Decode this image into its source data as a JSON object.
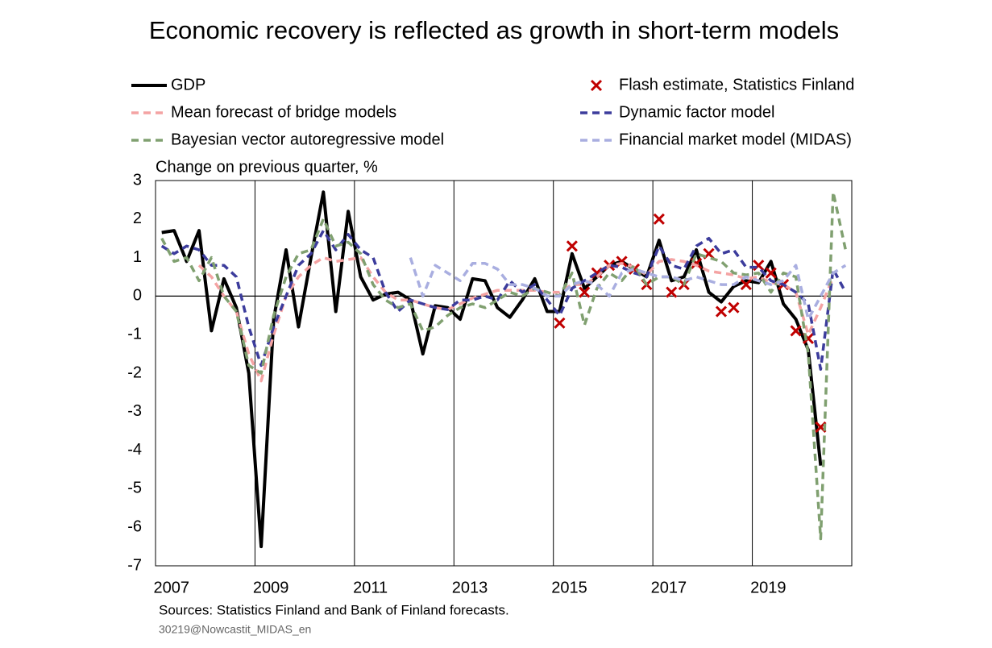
{
  "chart_data": {
    "type": "line",
    "title": "Economic recovery is reflected as growth in short-term models",
    "y_label": "Change on previous quarter, %",
    "source": "Sources: Statistics Finland and Bank of Finland forecasts.",
    "code": "30219@Nowcastit_MIDAS_en",
    "legend": "top",
    "grid": "x",
    "xlim": [
      2007,
      2021
    ],
    "xticks": [
      2007,
      2009,
      2011,
      2013,
      2015,
      2017,
      2019
    ],
    "ylim": [
      -7,
      3
    ],
    "yticks": [
      -7,
      -6,
      -5,
      -4,
      -3,
      -2,
      -1,
      0,
      1,
      2,
      3
    ],
    "x": [
      2007.125,
      2007.375,
      2007.625,
      2007.875,
      2008.125,
      2008.375,
      2008.625,
      2008.875,
      2009.125,
      2009.375,
      2009.625,
      2009.875,
      2010.125,
      2010.375,
      2010.625,
      2010.875,
      2011.125,
      2011.375,
      2011.625,
      2011.875,
      2012.125,
      2012.375,
      2012.625,
      2012.875,
      2013.125,
      2013.375,
      2013.625,
      2013.875,
      2014.125,
      2014.375,
      2014.625,
      2014.875,
      2015.125,
      2015.375,
      2015.625,
      2015.875,
      2016.125,
      2016.375,
      2016.625,
      2016.875,
      2017.125,
      2017.375,
      2017.625,
      2017.875,
      2018.125,
      2018.375,
      2018.625,
      2018.875,
      2019.125,
      2019.375,
      2019.625,
      2019.875,
      2020.125,
      2020.375,
      2020.625,
      2020.875
    ],
    "series": [
      {
        "name": "GDP",
        "color": "#000000",
        "style": "solid",
        "values": [
          1.65,
          1.7,
          0.9,
          1.7,
          -0.9,
          0.45,
          -0.3,
          -2.0,
          -6.5,
          -0.6,
          1.2,
          -0.8,
          1.0,
          2.7,
          -0.4,
          2.2,
          0.5,
          -0.1,
          0.05,
          0.1,
          -0.1,
          -1.5,
          -0.25,
          -0.3,
          -0.6,
          0.45,
          0.4,
          -0.3,
          -0.55,
          -0.1,
          0.45,
          -0.4,
          -0.4,
          1.1,
          0.2,
          0.5,
          0.8,
          0.9,
          0.7,
          0.5,
          1.45,
          0.4,
          0.5,
          1.2,
          0.1,
          -0.15,
          0.25,
          0.4,
          0.35,
          0.9,
          -0.2,
          -0.6,
          -1.4,
          -4.4,
          null,
          null
        ]
      },
      {
        "name": "Flash estimate, Statistics Finland",
        "color": "#c00000",
        "style": "marker-x",
        "values": [
          null,
          null,
          null,
          null,
          null,
          null,
          null,
          null,
          null,
          null,
          null,
          null,
          null,
          null,
          null,
          null,
          null,
          null,
          null,
          null,
          null,
          null,
          null,
          null,
          null,
          null,
          null,
          null,
          null,
          null,
          null,
          null,
          -0.7,
          1.3,
          0.1,
          0.6,
          0.8,
          0.9,
          0.7,
          0.3,
          2.0,
          0.1,
          0.3,
          0.85,
          1.1,
          -0.4,
          -0.3,
          0.3,
          0.8,
          0.6,
          0.3,
          -0.9,
          -1.1,
          -3.4,
          null,
          null
        ]
      },
      {
        "name": "Mean forecast of bridge models",
        "color": "#f4a3a3",
        "style": "dashed",
        "values": [
          null,
          null,
          null,
          0.8,
          0.5,
          0.0,
          -0.4,
          -1.5,
          -2.2,
          -1.0,
          0.0,
          0.5,
          0.8,
          1.0,
          0.9,
          0.95,
          1.0,
          0.5,
          0.1,
          -0.1,
          -0.1,
          -0.2,
          -0.3,
          -0.35,
          -0.2,
          -0.05,
          0.05,
          0.15,
          0.15,
          0.15,
          0.15,
          0.1,
          0.1,
          0.3,
          0.3,
          0.5,
          0.8,
          0.85,
          0.75,
          0.55,
          0.9,
          0.95,
          0.9,
          0.8,
          0.65,
          0.6,
          0.55,
          0.45,
          0.5,
          0.35,
          0.3,
          0.1,
          -1.0,
          -0.3,
          0.5,
          null
        ]
      },
      {
        "name": "Dynamic factor model",
        "color": "#3c3c9c",
        "style": "dashed",
        "values": [
          1.3,
          1.1,
          1.3,
          1.2,
          0.8,
          0.8,
          0.5,
          -0.8,
          -1.8,
          -0.8,
          0.0,
          0.8,
          1.1,
          1.7,
          1.2,
          1.6,
          1.2,
          1.0,
          0.1,
          -0.4,
          -0.1,
          -0.2,
          -0.3,
          -0.35,
          -0.1,
          -0.1,
          0.0,
          -0.1,
          0.4,
          0.1,
          0.3,
          -0.1,
          -0.5,
          0.2,
          0.4,
          0.6,
          0.8,
          0.75,
          0.6,
          0.5,
          1.3,
          0.8,
          0.7,
          1.3,
          1.5,
          1.1,
          1.2,
          0.75,
          0.75,
          0.4,
          0.3,
          0.1,
          -0.2,
          -1.9,
          0.7,
          0.1
        ]
      },
      {
        "name": "Bayesian vector autoregressive model",
        "color": "#80a070",
        "style": "dashed",
        "values": [
          1.5,
          0.9,
          1.0,
          0.4,
          1.0,
          0.0,
          -0.4,
          -1.8,
          -2.0,
          -0.5,
          0.5,
          1.1,
          1.2,
          2.0,
          1.3,
          1.4,
          1.1,
          0.3,
          -0.1,
          -0.3,
          -0.2,
          -0.9,
          -0.8,
          -0.5,
          -0.3,
          -0.2,
          -0.3,
          -0.1,
          0.1,
          0.0,
          0.2,
          0.1,
          0.0,
          0.6,
          -0.75,
          0.2,
          0.6,
          0.4,
          0.8,
          0.3,
          0.5,
          0.5,
          0.3,
          1.1,
          1.0,
          0.9,
          0.6,
          0.55,
          0.6,
          0.1,
          0.6,
          0.5,
          -1.5,
          -6.3,
          2.7,
          1.2
        ]
      },
      {
        "name": "Financial market model (MIDAS)",
        "color": "#a9aee0",
        "style": "dashed",
        "values": [
          null,
          null,
          null,
          null,
          null,
          null,
          null,
          null,
          null,
          null,
          null,
          null,
          null,
          null,
          null,
          null,
          null,
          null,
          null,
          null,
          1.0,
          0.0,
          0.8,
          0.6,
          0.4,
          0.85,
          0.85,
          0.7,
          0.3,
          0.3,
          0.2,
          0.0,
          0.0,
          0.3,
          0.4,
          0.3,
          0.0,
          0.6,
          0.7,
          0.6,
          0.5,
          0.5,
          0.4,
          0.5,
          0.4,
          0.3,
          0.3,
          0.5,
          0.4,
          0.3,
          0.4,
          0.8,
          -0.6,
          0.0,
          0.6,
          0.8
        ]
      }
    ]
  }
}
